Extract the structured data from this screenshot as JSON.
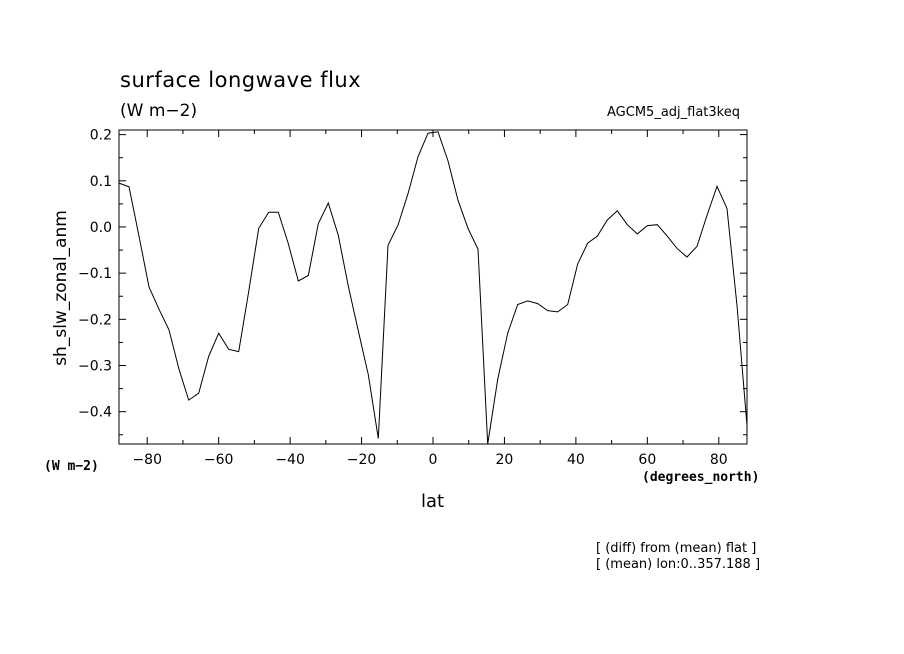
{
  "chart_data": {
    "type": "line",
    "title": "surface longwave flux",
    "units": "(W m−2)",
    "dataset": "AGCM5_adj_flat3keq",
    "ylabel": "sh_slw_zonal_anm",
    "ylabel_unit": "(W m−2)",
    "xlabel": "lat",
    "xlabel_unit": "(degrees_north)",
    "xlim": [
      -87.9,
      87.9
    ],
    "ylim": [
      -0.47,
      0.21
    ],
    "xticks": [
      -80,
      -60,
      -40,
      -20,
      0,
      20,
      40,
      60,
      80
    ],
    "xtick_labels": [
      "−80",
      "−60",
      "−40",
      "−20",
      "0",
      "20",
      "40",
      "60",
      "80"
    ],
    "yticks": [
      0.2,
      0.1,
      0.0,
      -0.1,
      -0.2,
      -0.3,
      -0.4
    ],
    "ytick_labels": [
      "0.2",
      "0.1",
      "0.0",
      "−0.1",
      "−0.2",
      "−0.3",
      "−0.4"
    ],
    "grid": false,
    "series": [
      {
        "color": "#000000",
        "x": [
          -87.9,
          -85.1,
          -82.3,
          -79.5,
          -76.7,
          -73.9,
          -71.1,
          -68.4,
          -65.6,
          -62.8,
          -60.0,
          -57.2,
          -54.4,
          -51.6,
          -48.8,
          -46.0,
          -43.3,
          -40.5,
          -37.7,
          -34.9,
          -32.1,
          -29.3,
          -26.5,
          -23.7,
          -20.9,
          -18.1,
          -15.3,
          -12.6,
          -9.8,
          -7.0,
          -4.2,
          -1.4,
          1.4,
          4.2,
          7.0,
          9.8,
          12.6,
          15.3,
          18.1,
          20.9,
          23.7,
          26.5,
          29.3,
          32.1,
          34.9,
          37.7,
          40.5,
          43.3,
          46.0,
          48.8,
          51.6,
          54.4,
          57.2,
          60.0,
          62.8,
          65.6,
          68.4,
          71.1,
          73.9,
          76.7,
          79.5,
          82.3,
          85.1,
          87.9
        ],
        "values": [
          0.095,
          0.087,
          -0.02,
          -0.13,
          -0.178,
          -0.223,
          -0.308,
          -0.375,
          -0.36,
          -0.28,
          -0.23,
          -0.265,
          -0.27,
          -0.14,
          -0.003,
          0.032,
          0.032,
          -0.036,
          -0.117,
          -0.105,
          0.007,
          0.052,
          -0.018,
          -0.128,
          -0.225,
          -0.32,
          -0.458,
          -0.04,
          0.004,
          0.072,
          0.152,
          0.203,
          0.206,
          0.143,
          0.058,
          -0.003,
          -0.048,
          -0.47,
          -0.33,
          -0.23,
          -0.168,
          -0.16,
          -0.166,
          -0.181,
          -0.184,
          -0.168,
          -0.08,
          -0.035,
          -0.02,
          0.015,
          0.035,
          0.005,
          -0.015,
          0.003,
          0.005,
          -0.02,
          -0.047,
          -0.065,
          -0.042,
          0.025,
          0.088,
          0.04,
          -0.17,
          -0.43
        ]
      }
    ]
  },
  "notes": {
    "line1": "[ (diff) from (mean) flat ]",
    "line2": "[ (mean) lon:0..357.188 ]"
  }
}
